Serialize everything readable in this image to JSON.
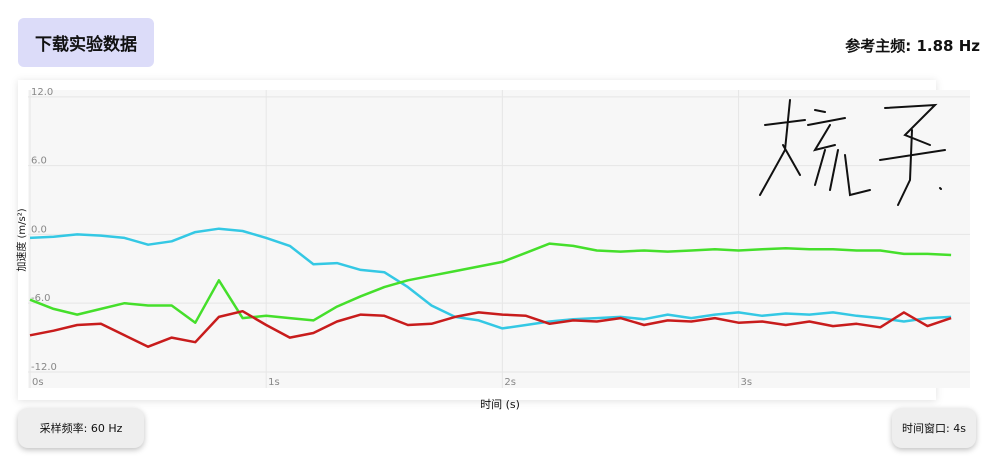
{
  "button": "下载实验数据",
  "reference_frequency": "参考主频: 1.88 Hz",
  "sample_rate": "采样频率: 60 Hz",
  "time_window": "时间窗口: 4s",
  "chart_data": {
    "type": "line",
    "x_label": "时间 (s)",
    "y_label": "加速度 (m/s²)",
    "x": [
      0,
      0.1,
      0.2,
      0.3,
      0.4,
      0.5,
      0.6,
      0.7,
      0.8,
      0.9,
      1.0,
      1.1,
      1.2,
      1.3,
      1.4,
      1.5,
      1.6,
      1.7,
      1.8,
      1.9,
      2.0,
      2.1,
      2.2,
      2.3,
      2.4,
      2.5,
      2.6,
      2.7,
      2.8,
      2.9,
      3.0,
      3.1,
      3.2,
      3.3,
      3.4,
      3.5,
      3.6,
      3.7,
      3.8,
      3.9
    ],
    "series": [
      {
        "color": "#34c8e4",
        "values": [
          -0.3,
          -0.2,
          0.0,
          -0.1,
          -0.3,
          -0.9,
          -0.6,
          0.2,
          0.5,
          0.3,
          -0.3,
          -1.0,
          -2.6,
          -2.5,
          -3.1,
          -3.3,
          -4.6,
          -6.2,
          -7.2,
          -7.5,
          -8.2,
          -7.9,
          -7.6,
          -7.4,
          -7.3,
          -7.2,
          -7.4,
          -7.0,
          -7.3,
          -7.0,
          -6.8,
          -7.1,
          -6.9,
          -7.0,
          -6.8,
          -7.1,
          -7.3,
          -7.6,
          -7.3,
          -7.2
        ]
      },
      {
        "color": "#45df2b",
        "values": [
          -5.7,
          -6.5,
          -7.0,
          -6.5,
          -6.0,
          -6.2,
          -6.2,
          -7.7,
          -4.0,
          -7.3,
          -7.1,
          -7.3,
          -7.5,
          -6.3,
          -5.4,
          -4.6,
          -4.0,
          -3.6,
          -3.2,
          -2.8,
          -2.4,
          -1.6,
          -0.8,
          -1.0,
          -1.4,
          -1.5,
          -1.4,
          -1.5,
          -1.4,
          -1.3,
          -1.4,
          -1.3,
          -1.2,
          -1.3,
          -1.3,
          -1.4,
          -1.4,
          -1.7,
          -1.7,
          -1.8
        ]
      },
      {
        "color": "#c81c1c",
        "values": [
          -8.8,
          -8.4,
          -7.9,
          -7.8,
          -8.8,
          -9.8,
          -9.0,
          -9.4,
          -7.2,
          -6.7,
          -7.9,
          -9.0,
          -8.6,
          -7.6,
          -7.0,
          -7.1,
          -7.9,
          -7.8,
          -7.2,
          -6.8,
          -7.0,
          -7.1,
          -7.8,
          -7.5,
          -7.6,
          -7.3,
          -7.9,
          -7.5,
          -7.6,
          -7.3,
          -7.7,
          -7.6,
          -7.9,
          -7.6,
          -8.0,
          -7.8,
          -8.1,
          -6.8,
          -8.0,
          -7.3
        ]
      }
    ],
    "xlim": [
      0,
      3.98
    ],
    "ylim": [
      -13.4,
      12.6
    ],
    "xticks": [
      {
        "value": 0,
        "label": "0s"
      },
      {
        "value": 1,
        "label": "1s"
      },
      {
        "value": 2,
        "label": "2s"
      },
      {
        "value": 3,
        "label": "3s"
      }
    ],
    "yticks": [
      {
        "value": 12,
        "label": "12.0"
      },
      {
        "value": 6,
        "label": "6.0"
      },
      {
        "value": 0,
        "label": "0.0"
      },
      {
        "value": -6,
        "label": "-6.0"
      },
      {
        "value": -12,
        "label": "-12.0"
      }
    ],
    "grid": true
  }
}
